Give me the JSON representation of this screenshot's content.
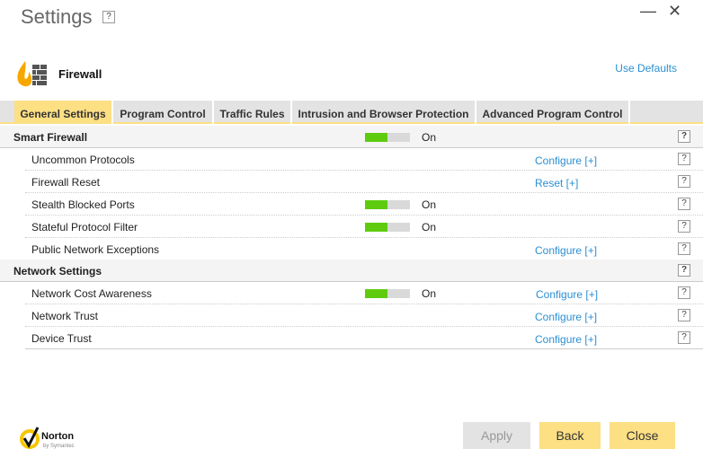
{
  "window": {
    "title": "Settings",
    "help": "?",
    "minimize": "—",
    "close": "✕"
  },
  "header": {
    "title": "Firewall",
    "use_defaults": "Use Defaults",
    "icon": "firewall-icon"
  },
  "tabs": [
    {
      "label": "General Settings",
      "active": true
    },
    {
      "label": "Program Control"
    },
    {
      "label": "Traffic Rules"
    },
    {
      "label": "Intrusion and Browser Protection"
    },
    {
      "label": "Advanced Program Control"
    }
  ],
  "sections": [
    {
      "title": "Smart Firewall",
      "toggle": "On",
      "help": "?",
      "items": [
        {
          "label": "Uncommon Protocols",
          "link": "Configure [+]",
          "help": "?"
        },
        {
          "label": "Firewall Reset",
          "link": "Reset [+]",
          "help": "?"
        },
        {
          "label": "Stealth Blocked Ports",
          "toggle": "On",
          "help": "?"
        },
        {
          "label": "Stateful Protocol Filter",
          "toggle": "On",
          "help": "?"
        },
        {
          "label": "Public Network Exceptions",
          "link": "Configure [+]",
          "help": "?"
        }
      ]
    },
    {
      "title": "Network Settings",
      "help": "?",
      "items": [
        {
          "label": "Network Cost Awareness",
          "toggle": "On",
          "link": "Configure [+]",
          "help": "?"
        },
        {
          "label": "Network Trust",
          "link": "Configure [+]",
          "help": "?"
        },
        {
          "label": "Device Trust",
          "link": "Configure [+]",
          "help": "?"
        }
      ]
    }
  ],
  "footer": {
    "logo": "Norton by Symantec",
    "apply": "Apply",
    "back": "Back",
    "close": "Close"
  },
  "colors": {
    "accent": "#fddf84",
    "toggle_on": "#5fcb0f",
    "link": "#2a8fd4"
  }
}
